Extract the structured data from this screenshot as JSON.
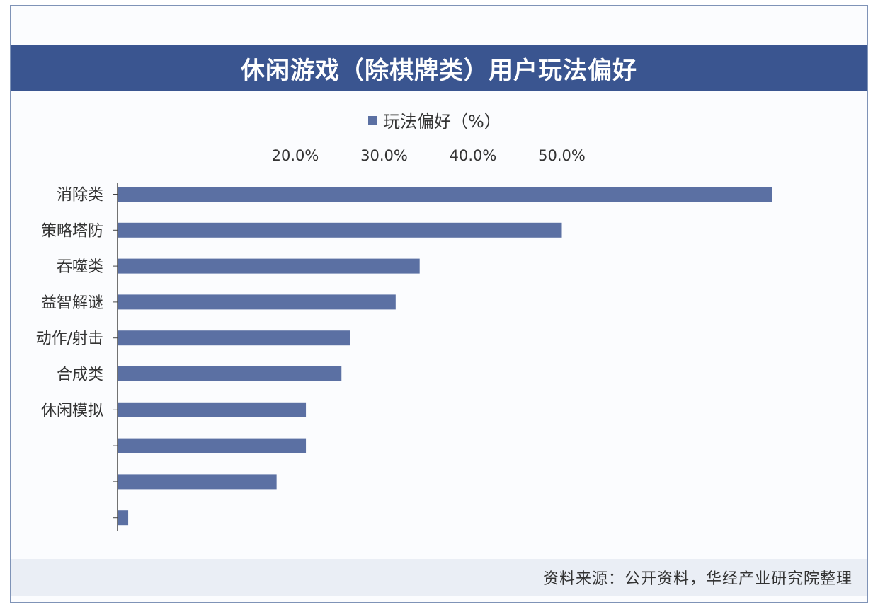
{
  "title": "休闲游戏（除棋牌类）用户玩法偏好",
  "source": "资料来源：公开资料，华经产业研究院整理",
  "colors": {
    "bar": "#5b70a3",
    "title_bg": "#3a5590",
    "axis": "#444444"
  },
  "chart_data": {
    "type": "bar",
    "orientation": "horizontal",
    "legend": {
      "label": "玩法偏好（%）",
      "position": "top"
    },
    "x_ticks": [
      "20.0%",
      "30.0%",
      "40.0%",
      "50.0%"
    ],
    "x_tick_values": [
      20,
      30,
      40,
      50
    ],
    "categories": [
      "消除类",
      "策略塔防",
      "吞噬类",
      "益智解谜",
      "动作/射击",
      "合成类",
      "休闲模拟",
      "",
      "",
      ""
    ],
    "values": [
      73.7,
      50.0,
      34.0,
      31.3,
      26.2,
      25.2,
      21.2,
      21.2,
      17.9,
      1.2
    ],
    "grid": false
  }
}
